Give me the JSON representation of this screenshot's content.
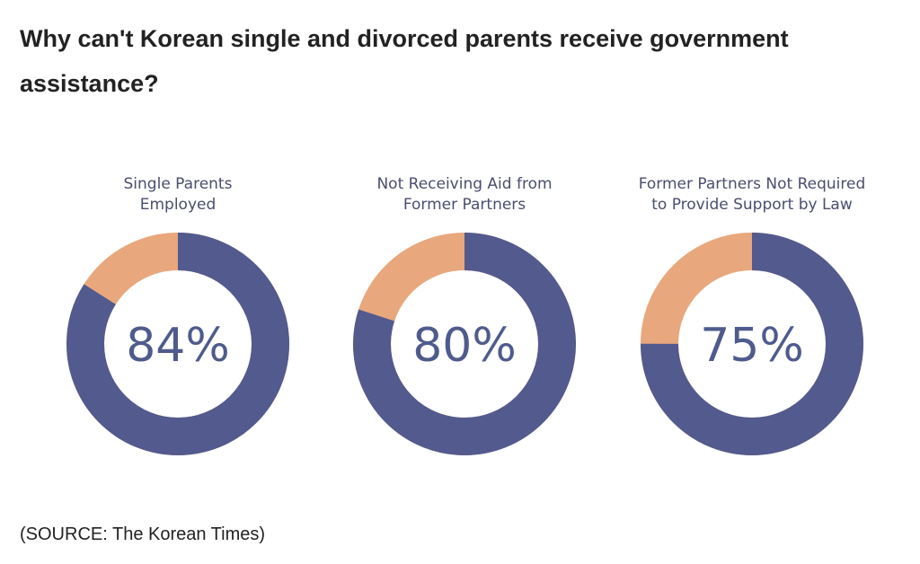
{
  "title": "Why can't Korean single and divorced parents receive government assistance?",
  "source": "(SOURCE: The Korean Times)",
  "colors": {
    "primary": "#525a8e",
    "remainder": "#e8a77c"
  },
  "chart_data": {
    "type": "pie",
    "variant": "donut",
    "items": [
      {
        "label_lines": [
          "Single Parents",
          "Employed"
        ],
        "value": 84,
        "display": "84%"
      },
      {
        "label_lines": [
          "Not Receiving Aid from",
          "Former Partners"
        ],
        "value": 80,
        "display": "80%"
      },
      {
        "label_lines": [
          "Former Partners Not Required",
          "to Provide Support by Law"
        ],
        "value": 75,
        "display": "75%"
      }
    ]
  }
}
